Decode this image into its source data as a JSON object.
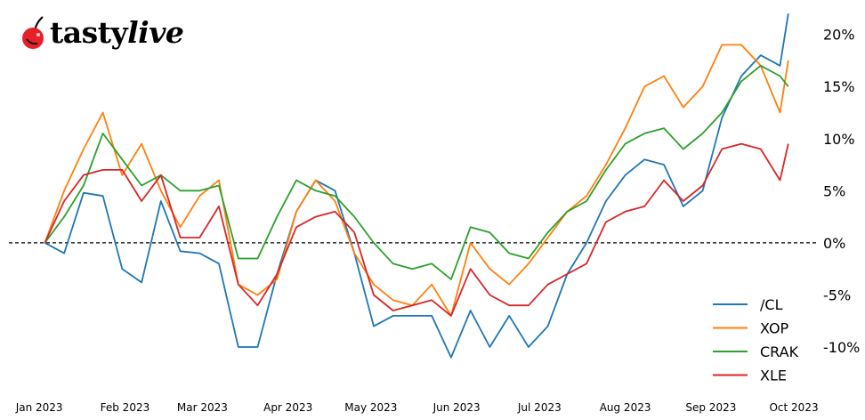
{
  "logo": {
    "brand_a": "tasty",
    "brand_b": "live"
  },
  "chart_data": {
    "type": "line",
    "title": "",
    "xlabel": "",
    "ylabel": "",
    "x": [
      "2023-01-03",
      "2023-01-10",
      "2023-01-17",
      "2023-01-24",
      "2023-01-31",
      "2023-02-07",
      "2023-02-14",
      "2023-02-21",
      "2023-02-28",
      "2023-03-07",
      "2023-03-14",
      "2023-03-21",
      "2023-03-28",
      "2023-04-04",
      "2023-04-11",
      "2023-04-18",
      "2023-04-25",
      "2023-05-02",
      "2023-05-09",
      "2023-05-16",
      "2023-05-23",
      "2023-05-30",
      "2023-06-06",
      "2023-06-13",
      "2023-06-20",
      "2023-06-27",
      "2023-07-04",
      "2023-07-11",
      "2023-07-18",
      "2023-07-25",
      "2023-08-01",
      "2023-08-08",
      "2023-08-15",
      "2023-08-22",
      "2023-08-29",
      "2023-09-05",
      "2023-09-12",
      "2023-09-19",
      "2023-09-26",
      "2023-09-29"
    ],
    "series": [
      {
        "name": "/CL",
        "color": "#1f77b4",
        "values": [
          0,
          -1,
          4.8,
          4.5,
          -2.5,
          -3.8,
          4,
          -0.8,
          -1,
          -2,
          -10,
          -10,
          -3,
          3,
          6,
          5,
          -1,
          -8,
          -7,
          -7,
          -7,
          -11,
          -6.5,
          -10,
          -7,
          -10,
          -8,
          -3,
          0,
          4,
          6.5,
          8,
          7.5,
          3.5,
          5,
          12,
          16,
          18,
          17,
          22
        ]
      },
      {
        "name": "XOP",
        "color": "#ff7f0e",
        "values": [
          0,
          5,
          9,
          12.5,
          6.5,
          9.5,
          5,
          1.5,
          4.5,
          6,
          -4,
          -5,
          -3.5,
          3,
          6,
          4,
          -1,
          -4,
          -5.5,
          -6,
          -4,
          -7,
          0,
          -2.5,
          -4,
          -2,
          0.5,
          3,
          4.5,
          7.5,
          11,
          15,
          16,
          13,
          15,
          19,
          19,
          17,
          12.5,
          17.5
        ]
      },
      {
        "name": "CRAK",
        "color": "#2ca02c",
        "values": [
          0,
          2.5,
          5.5,
          10.5,
          8,
          5.5,
          6.5,
          5,
          5,
          5.5,
          -1.5,
          -1.5,
          2.5,
          6,
          5,
          4.5,
          2.5,
          0,
          -2,
          -2.5,
          -2,
          -3.5,
          1.5,
          1,
          -1,
          -1.5,
          1,
          3,
          4,
          7,
          9.5,
          10.5,
          11,
          9,
          10.5,
          12.5,
          15.5,
          17,
          16,
          15
        ]
      },
      {
        "name": "XLE",
        "color": "#d62728",
        "values": [
          0,
          4,
          6.5,
          7,
          7,
          4,
          6.5,
          0.5,
          0.5,
          3.5,
          -4,
          -6,
          -3,
          1.5,
          2.5,
          3,
          1,
          -5,
          -6.5,
          -6,
          -5.5,
          -7,
          -2.5,
          -5,
          -6,
          -6,
          -4,
          -3,
          -2,
          2,
          3,
          3.5,
          6,
          4,
          5.5,
          9,
          9.5,
          9,
          6,
          9.5
        ]
      }
    ],
    "xticks": [
      {
        "date": "2023-01-01",
        "label": "Jan 2023"
      },
      {
        "date": "2023-02-01",
        "label": "Feb 2023"
      },
      {
        "date": "2023-03-01",
        "label": "Mar 2023"
      },
      {
        "date": "2023-04-01",
        "label": "Apr 2023"
      },
      {
        "date": "2023-05-01",
        "label": "May 2023"
      },
      {
        "date": "2023-06-01",
        "label": "Jun 2023"
      },
      {
        "date": "2023-07-01",
        "label": "Jul 2023"
      },
      {
        "date": "2023-08-01",
        "label": "Aug 2023"
      },
      {
        "date": "2023-09-01",
        "label": "Sep 2023"
      },
      {
        "date": "2023-10-01",
        "label": "Oct 2023"
      }
    ],
    "yticks": [
      {
        "value": 20,
        "label": "20%"
      },
      {
        "value": 15,
        "label": "15%"
      },
      {
        "value": 10,
        "label": "10%"
      },
      {
        "value": 5,
        "label": "5%"
      },
      {
        "value": 0,
        "label": "0%"
      },
      {
        "value": -5,
        "label": "-5%"
      },
      {
        "value": -10,
        "label": "-10%"
      }
    ],
    "xlim": [
      "2022-12-21",
      "2023-10-10"
    ],
    "ylim": [
      -17,
      23.3
    ],
    "y_axis_side": "right",
    "zero_line": "dashed",
    "grid": false,
    "legend_placement": "bottom-right"
  }
}
